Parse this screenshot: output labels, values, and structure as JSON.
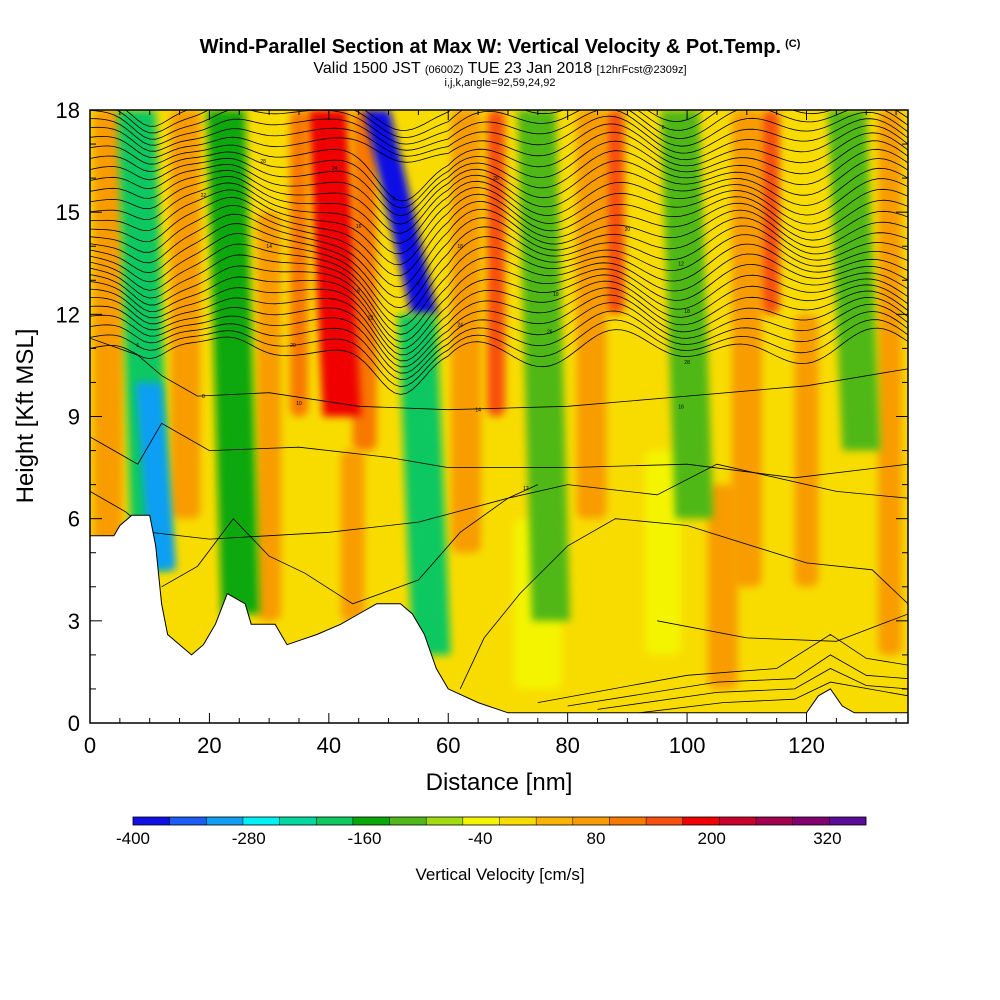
{
  "header": {
    "title": "Wind-Parallel Section at Max W: Vertical Velocity & Pot.Temp.",
    "title_mark": "(C)",
    "valid_prefix": "Valid 1500 JST",
    "valid_zulu": "(0600Z)",
    "valid_date": "TUE 23 Jan 2018",
    "forecast_info": "[12hrFcst@2309z]",
    "section_params": "i,j,k,angle=92,59,24,92"
  },
  "chart_data": {
    "type": "heatmap",
    "xlabel": "Distance [nm]",
    "ylabel": "Height [Kft MSL]",
    "xlim": [
      0,
      137
    ],
    "ylim": [
      0,
      18
    ],
    "x_ticks": [
      0,
      20,
      40,
      60,
      80,
      100,
      120
    ],
    "y_ticks": [
      0,
      3,
      6,
      9,
      12,
      15,
      18
    ],
    "colorbar": {
      "label": "Vertical Velocity [cm/s]",
      "ticks": [
        -400,
        -280,
        -160,
        -40,
        80,
        200,
        320
      ],
      "range": [
        -400,
        360
      ],
      "colors": [
        "#1010e6",
        "#1c5ef5",
        "#109ff4",
        "#00f0f4",
        "#00d8a0",
        "#10c860",
        "#08a808",
        "#50b818",
        "#a0dc10",
        "#f4f400",
        "#f8dc00",
        "#f8b400",
        "#f89c00",
        "#f87800",
        "#f85010",
        "#f00000",
        "#c8002c",
        "#a40050",
        "#800070",
        "#5c0a98"
      ]
    },
    "vertical_velocity_bands_cm_s": [
      {
        "x": 9,
        "top_kft": 18,
        "bottom_kft": 4.5,
        "w": -200
      },
      {
        "x": 11,
        "top_kft": 10,
        "bottom_kft": 4.5,
        "w": -300
      },
      {
        "x": 24,
        "top_kft": 18,
        "bottom_kft": 3.2,
        "w": -140
      },
      {
        "x": 41,
        "top_kft": 18,
        "bottom_kft": 9,
        "w": 200
      },
      {
        "x": 52,
        "top_kft": 18,
        "bottom_kft": 12,
        "w": -380
      },
      {
        "x": 56,
        "top_kft": 12,
        "bottom_kft": 2,
        "w": -180
      },
      {
        "x": 76,
        "top_kft": 18,
        "bottom_kft": 3,
        "w": -120
      },
      {
        "x": 100,
        "top_kft": 18,
        "bottom_kft": 6,
        "w": -120
      },
      {
        "x": 128,
        "top_kft": 18,
        "bottom_kft": 8,
        "w": -100
      }
    ],
    "terrain_kft": [
      [
        0,
        5.5
      ],
      [
        4,
        5.5
      ],
      [
        5,
        5.8
      ],
      [
        7,
        6.1
      ],
      [
        10,
        6.1
      ],
      [
        11,
        5.2
      ],
      [
        12,
        3.5
      ],
      [
        13,
        2.6
      ],
      [
        15,
        2.3
      ],
      [
        17,
        2
      ],
      [
        19,
        2.3
      ],
      [
        21,
        2.9
      ],
      [
        23,
        3.8
      ],
      [
        26,
        3.5
      ],
      [
        27,
        2.9
      ],
      [
        31,
        2.9
      ],
      [
        33,
        2.3
      ],
      [
        38,
        2.6
      ],
      [
        42,
        2.9
      ],
      [
        45,
        3.2
      ],
      [
        48,
        3.5
      ],
      [
        52,
        3.5
      ],
      [
        54,
        3.2
      ],
      [
        56,
        2.6
      ],
      [
        58,
        1.6
      ],
      [
        60,
        1
      ],
      [
        65,
        0.6
      ],
      [
        70,
        0.3
      ],
      [
        120,
        0.3
      ],
      [
        122,
        0.8
      ],
      [
        124,
        1
      ],
      [
        126,
        0.5
      ],
      [
        128,
        0.3
      ],
      [
        137,
        0.3
      ]
    ],
    "isentrope_labels": [
      "6",
      "8",
      "10",
      "12",
      "14",
      "16",
      "18",
      "20",
      "22",
      "24",
      "26",
      "28"
    ]
  }
}
